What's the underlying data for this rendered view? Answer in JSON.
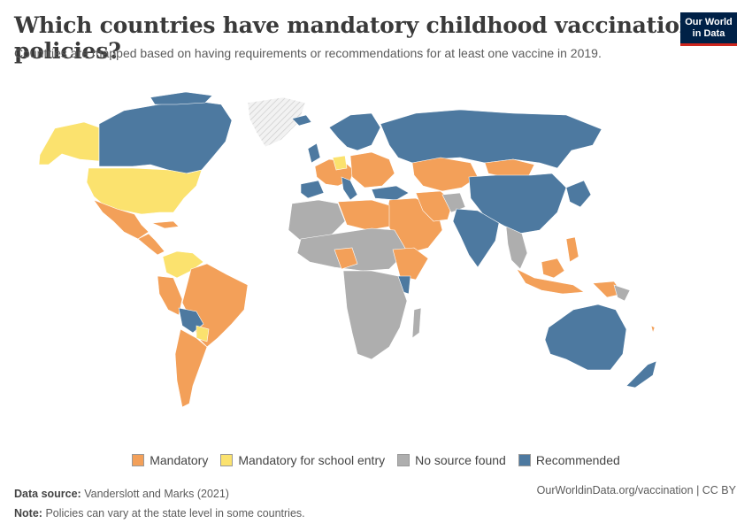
{
  "title": "Which countries have mandatory childhood vaccination policies?",
  "subtitle": "Countries are mapped based on having requirements or recommendations for at least one vaccine in 2019.",
  "logo": {
    "line1": "Our World",
    "line2": "in Data"
  },
  "colors": {
    "mandatory": "#f3a059",
    "school_entry": "#fbe26e",
    "no_source": "#aeaeae",
    "recommended": "#4d79a0",
    "no_data": "#e6e6e6"
  },
  "legend": [
    {
      "label": "Mandatory",
      "color": "#f3a059"
    },
    {
      "label": "Mandatory for school entry",
      "color": "#fbe26e"
    },
    {
      "label": "No source found",
      "color": "#aeaeae"
    },
    {
      "label": "Recommended",
      "color": "#4d79a0"
    }
  ],
  "footer": {
    "source_label": "Data source:",
    "source_text": "Vanderslott and Marks (2021)",
    "note_label": "Note:",
    "note_text": "Policies can vary at the state level in some countries.",
    "url": "OurWorldinData.org/vaccination | CC BY"
  }
}
